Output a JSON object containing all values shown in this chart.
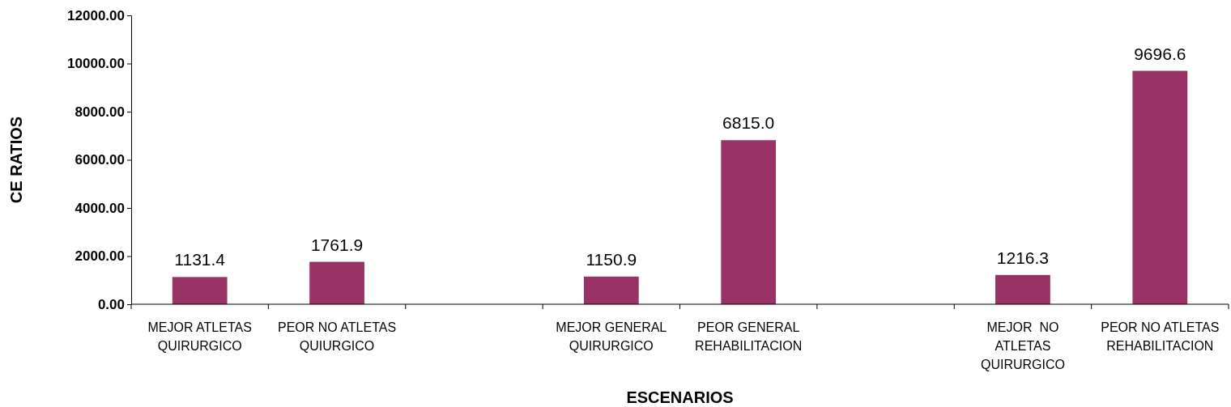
{
  "chart_data": {
    "type": "bar",
    "xlabel": "ESCENARIOS",
    "ylabel": "CE RATIOS",
    "categories": [
      "MEJOR ATLETAS\nQUIRURGICO",
      "PEOR NO ATLETAS\nQUIURGICO",
      null,
      "MEJOR GENERAL\nQUIRURGICO",
      "PEOR GENERAL\nREHABILITACION",
      null,
      "MEJOR  NO\nATLETAS\nQUIRURGICO",
      "PEOR NO ATLETAS\nREHABILITACION"
    ],
    "values": [
      1131.4,
      1761.9,
      null,
      1150.9,
      6815,
      null,
      1216.3,
      9696.6
    ],
    "value_labels": [
      "1131.4",
      "1761.9",
      null,
      "1150.9",
      "6815.0",
      null,
      "1216.3",
      "9696.6"
    ],
    "color": "#993366",
    "grid": false,
    "ylim": [
      0,
      12000
    ],
    "yticks": [
      {
        "value": 0,
        "label": "0.00"
      },
      {
        "value": 2000,
        "label": "2000.00"
      },
      {
        "value": 4000,
        "label": "4000.00"
      },
      {
        "value": 6000,
        "label": "6000.00"
      },
      {
        "value": 8000,
        "label": "8000.00"
      },
      {
        "value": 10000,
        "label": "10000.00"
      },
      {
        "value": 12000,
        "label": "12000.00"
      }
    ]
  }
}
